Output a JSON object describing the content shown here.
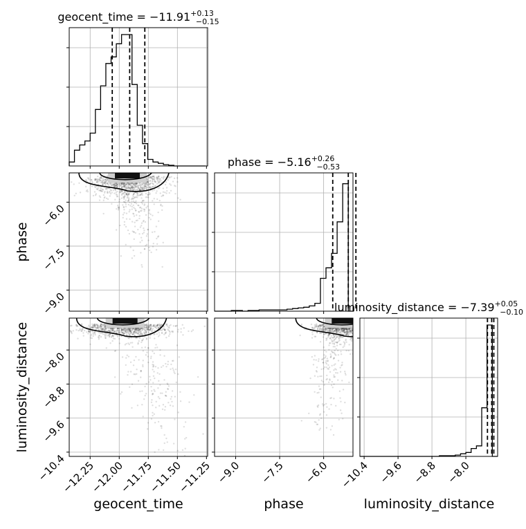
{
  "chart_data": {
    "type": "corner",
    "parameters": [
      "geocent_time",
      "phase",
      "luminosity_distance"
    ],
    "axis_labels": {
      "geocent_time": "geocent_time",
      "phase": "phase",
      "luminosity_distance": "luminosity_distance"
    },
    "titles": {
      "geocent_time": {
        "prefix": "geocent_time = ",
        "median": "−11.91",
        "plus": "+0.13",
        "minus": "−0.15"
      },
      "phase": {
        "prefix": "phase = ",
        "median": "−5.16",
        "plus": "+0.26",
        "minus": "−0.53"
      },
      "luminosity_distance": {
        "prefix": "luminosity_distance = ",
        "median": "−7.39",
        "plus": "+0.05",
        "minus": "−0.10"
      }
    },
    "ranges": {
      "geocent_time": [
        -12.43,
        -11.24
      ],
      "phase": [
        -9.72,
        -5.0
      ],
      "luminosity_distance": [
        -10.5,
        -7.25
      ]
    },
    "ticks": {
      "geocent_time": [
        -12.25,
        -12.0,
        -11.75,
        -11.5,
        -11.25
      ],
      "phase": [
        -9.0,
        -7.5,
        -6.0
      ],
      "luminosity_distance": [
        -10.4,
        -9.6,
        -8.8,
        -8.0
      ]
    },
    "tick_labels": {
      "geocent_time": [
        "−12.25",
        "−12.00",
        "−11.75",
        "−11.50",
        "−11.25"
      ],
      "phase": [
        "−9.0",
        "−7.5",
        "−6.0"
      ],
      "luminosity_distance": [
        "−10.4",
        "−9.6",
        "−8.8",
        "−8.0"
      ]
    },
    "quantile_lines": {
      "geocent_time": [
        -12.06,
        -11.91,
        -11.78
      ],
      "phase": [
        -5.69,
        -5.16,
        -4.9
      ],
      "luminosity_distance": [
        -7.49,
        -7.39,
        -7.34
      ]
    },
    "histograms": {
      "geocent_time": {
        "edges": [
          -12.43,
          -12.385,
          -12.34,
          -12.295,
          -12.25,
          -12.205,
          -12.16,
          -12.115,
          -12.07,
          -12.025,
          -11.98,
          -11.935,
          -11.89,
          -11.845,
          -11.8,
          -11.755,
          -11.71,
          -11.665,
          -11.62,
          -11.575,
          -11.53,
          -11.485,
          -11.44,
          -11.395,
          -11.35,
          -11.305,
          -11.26
        ],
        "counts": [
          0.03,
          0.12,
          0.16,
          0.19,
          0.25,
          0.43,
          0.61,
          0.78,
          0.83,
          0.93,
          1.0,
          1.0,
          0.62,
          0.31,
          0.17,
          0.05,
          0.03,
          0.02,
          0.01,
          0.005,
          0,
          0,
          0,
          0,
          0,
          0
        ]
      },
      "phase": {
        "edges": [
          -9.72,
          -9.53,
          -9.34,
          -9.15,
          -8.96,
          -8.77,
          -8.58,
          -8.39,
          -8.2,
          -8.01,
          -7.82,
          -7.63,
          -7.44,
          -7.25,
          -7.06,
          -6.87,
          -6.68,
          -6.49,
          -6.3,
          -6.11,
          -5.92,
          -5.73,
          -5.54,
          -5.35,
          -5.16,
          -4.97
        ],
        "counts": [
          0,
          0,
          0,
          0.005,
          0.005,
          0,
          0.005,
          0.005,
          0.01,
          0.01,
          0.01,
          0.01,
          0.01,
          0.015,
          0.02,
          0.025,
          0.03,
          0.04,
          0.06,
          0.25,
          0.33,
          0.44,
          0.68,
          0.97,
          0
        ]
      },
      "luminosity_distance": {
        "edges": [
          -10.5,
          -10.375,
          -10.25,
          -10.125,
          -10.0,
          -9.875,
          -9.75,
          -9.625,
          -9.5,
          -9.375,
          -9.25,
          -9.125,
          -9.0,
          -8.875,
          -8.75,
          -8.625,
          -8.5,
          -8.375,
          -8.25,
          -8.125,
          -8.0,
          -7.875,
          -7.75,
          -7.625,
          -7.5,
          -7.375,
          -7.25
        ],
        "counts": [
          0,
          0,
          0,
          0,
          0,
          0,
          0,
          0,
          0,
          0,
          0,
          0,
          0,
          0,
          0,
          0.005,
          0.005,
          0.005,
          0.01,
          0.02,
          0.03,
          0.06,
          0.08,
          0.37,
          1.0,
          0
        ]
      }
    },
    "scatter_2d": {
      "phase_vs_geocent_time": {
        "x": "geocent_time",
        "y": "phase",
        "center": [
          -11.93,
          -5.25
        ],
        "spread": [
          0.16,
          0.35
        ],
        "tail": "low phase near geocent_time -11.82"
      },
      "luminosity_distance_vs_geocent_time": {
        "x": "geocent_time",
        "y": "luminosity_distance",
        "center": [
          -11.95,
          -7.45
        ],
        "spread": [
          0.2,
          0.15
        ],
        "tail": "low distance toward geocent_time -11.5"
      },
      "luminosity_distance_vs_phase": {
        "x": "phase",
        "y": "luminosity_distance",
        "center": [
          -5.3,
          -7.45
        ],
        "spread": [
          0.5,
          0.15
        ],
        "tail": "low distance near phase -6"
      }
    },
    "grid": true,
    "legend": "none"
  }
}
